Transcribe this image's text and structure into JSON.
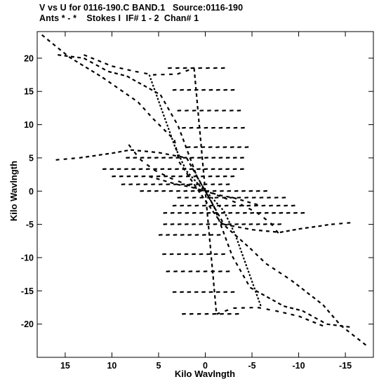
{
  "header": {
    "line1": "V vs U for 0116-190.C BAND.1   Source:0116-190",
    "line2": "Ants * - *    Stokes I  IF# 1 - 2  Chan# 1"
  },
  "chart_data": {
    "type": "scatter",
    "title": "V vs U for 0116-190.C BAND.1   Source:0116-190",
    "subtitle": "Ants * - *    Stokes I  IF# 1 - 2  Chan# 1",
    "xlabel": "Kilo Wavlngth",
    "ylabel": "Kilo Wavlngth",
    "xlim": [
      18,
      -18
    ],
    "ylim": [
      -25,
      24
    ],
    "x_ticks": [
      15,
      10,
      5,
      0,
      -5,
      -10,
      -15
    ],
    "y_ticks": [
      20,
      15,
      10,
      5,
      0,
      -5,
      -10,
      -15,
      -20
    ],
    "x_tick_labels": [
      "15",
      "10",
      "5",
      "0",
      "-5",
      "-10",
      "-15"
    ],
    "y_tick_labels": [
      "20",
      "15",
      "10",
      "5",
      "0",
      "-5",
      "-10",
      "-15",
      "-20"
    ],
    "grid": false,
    "marker_color": "#000000",
    "point_style": "short dashes along radial uv tracks, mirrored through the origin",
    "tracks": [
      {
        "u": [
          17.5,
          14.6,
          11.0,
          7.2,
          5.6,
          3.3,
          2.8,
          0.8,
          -1.6,
          -4.8,
          -6.5,
          -9.2,
          -12.6,
          -14.5,
          -17.5
        ],
        "v": [
          23.5,
          20.2,
          17.1,
          13.4,
          10.9,
          7.7,
          4.4,
          0.2,
          -4.6,
          -8.6,
          -10.9,
          -13.4,
          -17.1,
          -20.2,
          -23.5
        ]
      },
      {
        "u": [
          15.8,
          13.0,
          10.4,
          8.4,
          4.8,
          2.9,
          0.9,
          -0.9,
          -2.9,
          -4.8,
          -8.4,
          -10.4,
          -13.0,
          -15.8
        ],
        "v": [
          20.5,
          20.0,
          18.0,
          17.3,
          14.5,
          9.8,
          2.2,
          -2.2,
          -9.8,
          -14.5,
          -17.3,
          -18.0,
          -20.0,
          -20.5
        ]
      },
      {
        "u": [
          13.0,
          10.0,
          7.5,
          5.6,
          3.0,
          1.2,
          -1.2,
          -3.0,
          -5.6,
          -7.5,
          -10.0,
          -13.0
        ],
        "v": [
          20.5,
          18.8,
          18.0,
          17.5,
          17.6,
          18.5,
          -18.5,
          -17.6,
          -17.5,
          -18.0,
          -18.8,
          -20.5
        ]
      },
      {
        "u": [
          16.0,
          13.5,
          10.0,
          8.0,
          5.0,
          2.0,
          -2.0,
          -5.0,
          -8.0,
          -10.0,
          -13.5,
          -16.0
        ],
        "v": [
          4.7,
          5.0,
          5.7,
          6.2,
          5.8,
          5.0,
          -5.0,
          -5.8,
          -6.2,
          -5.7,
          -5.0,
          -4.7
        ]
      },
      {
        "u": [
          8.2,
          7.0,
          5.5,
          3.8,
          2.0,
          0.5,
          -0.5,
          -2.0,
          -3.8,
          -5.5,
          -7.0,
          -8.2
        ],
        "v": [
          7.0,
          4.8,
          3.2,
          2.0,
          1.0,
          0.2,
          -0.2,
          -1.0,
          -2.0,
          -3.2,
          -4.8,
          -7.0
        ]
      },
      {
        "u": [
          6.0,
          4.5,
          3.0,
          1.5,
          0.0,
          -1.5,
          -3.0,
          -4.5,
          -6.0
        ],
        "v": [
          2.2,
          1.6,
          1.0,
          0.6,
          0.0,
          -0.6,
          -1.0,
          -1.6,
          -2.2
        ]
      }
    ],
    "uv_rows": [
      {
        "v": 18.5,
        "u_from": 4.0,
        "u_to": -2.5
      },
      {
        "v": 15.2,
        "u_from": 3.5,
        "u_to": -3.5
      },
      {
        "v": 12.1,
        "u_from": 3.0,
        "u_to": -4.2
      },
      {
        "v": 9.5,
        "u_from": 2.5,
        "u_to": -4.6
      },
      {
        "v": 6.6,
        "u_from": 2.0,
        "u_to": -5.0
      },
      {
        "v": 5.0,
        "u_from": 8.5,
        "u_to": -4.5
      },
      {
        "v": 3.3,
        "u_from": 11.0,
        "u_to": -4.5
      },
      {
        "v": 2.2,
        "u_from": 10.0,
        "u_to": -3.5
      },
      {
        "v": 1.0,
        "u_from": 9.0,
        "u_to": -3.0
      },
      {
        "v": 0.0,
        "u_from": 7.0,
        "u_to": -7.0
      },
      {
        "v": -1.0,
        "u_from": 3.0,
        "u_to": -9.0
      },
      {
        "v": -2.2,
        "u_from": 3.5,
        "u_to": -10.0
      },
      {
        "v": -3.3,
        "u_from": 4.5,
        "u_to": -11.0
      },
      {
        "v": -5.0,
        "u_from": 4.5,
        "u_to": -8.5
      },
      {
        "v": -6.6,
        "u_from": 5.0,
        "u_to": -2.0
      },
      {
        "v": -9.5,
        "u_from": 4.6,
        "u_to": -2.5
      },
      {
        "v": -12.1,
        "u_from": 4.2,
        "u_to": -3.0
      },
      {
        "v": -15.2,
        "u_from": 3.5,
        "u_to": -3.5
      },
      {
        "v": -18.5,
        "u_from": 2.5,
        "u_to": -4.0
      }
    ]
  }
}
